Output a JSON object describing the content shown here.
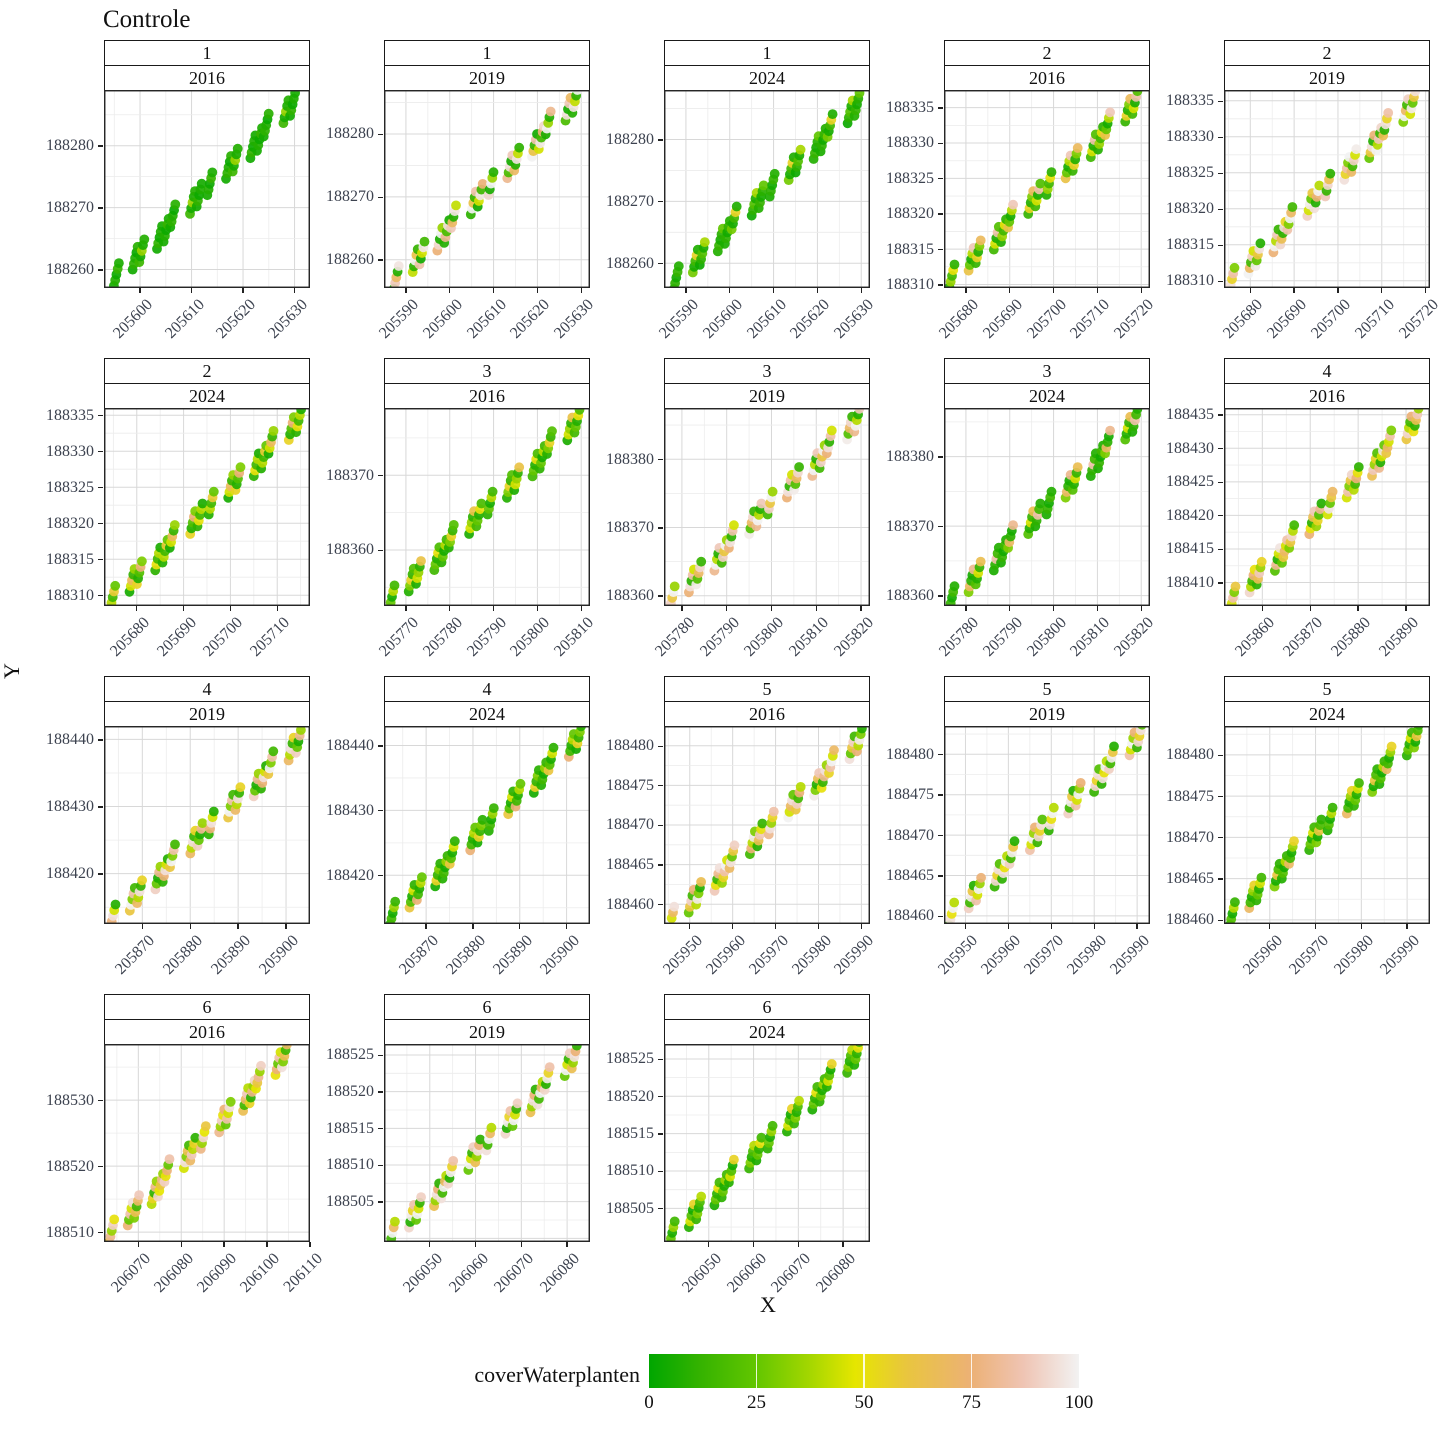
{
  "chart_data": {
    "type": "scatter",
    "title": "Controle",
    "xlabel": "X",
    "ylabel": "Y",
    "color_label": "coverWaterplanten",
    "color_scale": {
      "ticks": [
        0,
        25,
        50,
        75,
        100
      ],
      "stops": [
        {
          "at": 0,
          "color": "#00A600"
        },
        {
          "at": 12,
          "color": "#35B300"
        },
        {
          "at": 25,
          "color": "#63C600"
        },
        {
          "at": 37,
          "color": "#A2D600"
        },
        {
          "at": 48,
          "color": "#E6E600"
        },
        {
          "at": 60,
          "color": "#E9C53F"
        },
        {
          "at": 75,
          "color": "#ECB176"
        },
        {
          "at": 87,
          "color": "#EFC4B3"
        },
        {
          "at": 100,
          "color": "#F2F2F2"
        }
      ]
    },
    "style": {
      "panel_border": "#262626",
      "grid_major": "#d8d8d8",
      "grid_minor": "#ececec",
      "tick_color": "#222222",
      "point_radius": 4.9,
      "point_opacity": 0.92
    },
    "facets": [
      {
        "plot": "1",
        "year": "2016",
        "x_ticks": [
          205600,
          205610,
          205620,
          205630
        ],
        "y_ticks": [
          188260,
          188270,
          188280
        ],
        "x_range": [
          205593,
          205633
        ],
        "y_range": [
          188257,
          188289
        ],
        "band_x": [
          205596,
          205630
        ],
        "band_y": [
          188259.5,
          188287
        ],
        "covers": [
          5,
          8,
          3,
          12,
          6,
          4,
          10,
          7,
          2,
          9,
          14,
          5,
          35,
          6,
          8,
          4,
          11,
          3,
          7,
          5
        ]
      },
      {
        "plot": "1",
        "year": "2019",
        "x_ticks": [
          205590,
          205600,
          205610,
          205620,
          205630
        ],
        "y_ticks": [
          188260,
          188270,
          188280
        ],
        "x_range": [
          205585,
          205632
        ],
        "y_range": [
          188255.5,
          188287
        ],
        "band_x": [
          205588.5,
          205629
        ],
        "band_y": [
          188257.5,
          188285.5
        ],
        "covers": [
          5,
          88,
          70,
          8,
          96,
          42,
          10,
          100,
          62,
          12,
          85,
          4,
          45,
          97,
          15,
          75,
          92,
          6,
          100,
          35,
          8,
          80,
          18,
          95
        ]
      },
      {
        "plot": "1",
        "year": "2024",
        "x_ticks": [
          205590,
          205600,
          205610,
          205620,
          205630
        ],
        "y_ticks": [
          188260,
          188270,
          188280
        ],
        "x_range": [
          205585,
          205632
        ],
        "y_range": [
          188256,
          188288
        ],
        "band_x": [
          205588.5,
          205629.5
        ],
        "band_y": [
          188258,
          188286
        ],
        "covers": [
          6,
          10,
          4,
          12,
          8,
          28,
          5,
          15,
          55,
          7,
          3,
          10,
          20,
          6,
          38,
          8,
          12,
          5,
          9,
          24
        ]
      },
      {
        "plot": "2",
        "year": "2016",
        "x_ticks": [
          205680,
          205690,
          205700,
          205710,
          205720
        ],
        "y_ticks": [
          188310,
          188315,
          188320,
          188325,
          188330,
          188335
        ],
        "x_range": [
          205675,
          205722
        ],
        "y_range": [
          188309.5,
          188337.5
        ],
        "band_x": [
          205677.5,
          205719
        ],
        "band_y": [
          188311.5,
          188336
        ],
        "covers": [
          8,
          35,
          15,
          50,
          10,
          62,
          25,
          5,
          40,
          88,
          12,
          55,
          8,
          30,
          68,
          15,
          45,
          6,
          85,
          20
        ]
      },
      {
        "plot": "2",
        "year": "2019",
        "x_ticks": [
          205680,
          205690,
          205700,
          205710,
          205720
        ],
        "y_ticks": [
          188310,
          188315,
          188320,
          188325,
          188330,
          188335
        ],
        "x_range": [
          205674,
          205721
        ],
        "y_range": [
          188309,
          188336.5
        ],
        "band_x": [
          205676.5,
          205717.5
        ],
        "band_y": [
          188310.5,
          188335
        ],
        "covers": [
          10,
          95,
          55,
          85,
          30,
          100,
          70,
          15,
          90,
          45,
          98,
          25,
          60,
          95,
          8,
          75,
          100,
          40,
          88,
          12,
          92,
          65
        ]
      },
      {
        "plot": "2",
        "year": "2024",
        "x_ticks": [
          205680,
          205690,
          205700,
          205710
        ],
        "y_ticks": [
          188310,
          188315,
          188320,
          188325,
          188330,
          188335
        ],
        "x_range": [
          205673,
          205717
        ],
        "y_range": [
          188308.5,
          188336
        ],
        "band_x": [
          205675.5,
          205715
        ],
        "band_y": [
          188310,
          188334.5
        ],
        "covers": [
          8,
          40,
          15,
          58,
          25,
          5,
          45,
          68,
          12,
          35,
          55,
          8,
          20,
          75,
          30,
          10,
          50,
          15,
          40,
          6
        ]
      },
      {
        "plot": "3",
        "year": "2016",
        "x_ticks": [
          205770,
          205780,
          205790,
          205800,
          205810
        ],
        "y_ticks": [
          188360,
          188370
        ],
        "x_range": [
          205765,
          205812
        ],
        "y_range": [
          188352.5,
          188379
        ],
        "band_x": [
          205767.5,
          205809.5
        ],
        "band_y": [
          188354,
          188377.5
        ],
        "covers": [
          10,
          25,
          5,
          40,
          15,
          8,
          30,
          55,
          12,
          20,
          6,
          45,
          35,
          10,
          62,
          15,
          25,
          8,
          50,
          18
        ]
      },
      {
        "plot": "3",
        "year": "2019",
        "x_ticks": [
          205780,
          205790,
          205800,
          205810,
          205820
        ],
        "y_ticks": [
          188360,
          188370,
          188380
        ],
        "x_range": [
          205776,
          205822
        ],
        "y_range": [
          188358.5,
          188387.5
        ],
        "band_x": [
          205778.5,
          205819.5
        ],
        "band_y": [
          188360,
          188386
        ],
        "covers": [
          15,
          90,
          60,
          100,
          35,
          75,
          95,
          10,
          85,
          45,
          98,
          20,
          70,
          92,
          12,
          80,
          100,
          40,
          8,
          88
        ]
      },
      {
        "plot": "3",
        "year": "2024",
        "x_ticks": [
          205780,
          205790,
          205800,
          205810,
          205820
        ],
        "y_ticks": [
          188360,
          188370,
          188380
        ],
        "x_range": [
          205775,
          205822
        ],
        "y_range": [
          188358.5,
          188387
        ],
        "band_x": [
          205777.5,
          205819
        ],
        "band_y": [
          188360,
          188385.5
        ],
        "covers": [
          6,
          12,
          4,
          15,
          8,
          30,
          70,
          10,
          5,
          80,
          20,
          8,
          45,
          12,
          65,
          6,
          10,
          85,
          15,
          8
        ]
      },
      {
        "plot": "4",
        "year": "2016",
        "x_ticks": [
          205860,
          205870,
          205880,
          205890
        ],
        "y_ticks": [
          188410,
          188415,
          188420,
          188425,
          188430,
          188435
        ],
        "x_range": [
          205852,
          205895
        ],
        "y_range": [
          188406.5,
          188436
        ],
        "band_x": [
          205854.5,
          205892.5
        ],
        "band_y": [
          188408,
          188434.5
        ],
        "covers": [
          70,
          45,
          85,
          30,
          60,
          92,
          40,
          15,
          75,
          50,
          10,
          65,
          88,
          35,
          55,
          20,
          80,
          8,
          45,
          96,
          25,
          60
        ]
      },
      {
        "plot": "4",
        "year": "2019",
        "x_ticks": [
          205870,
          205880,
          205890,
          205900
        ],
        "y_ticks": [
          188420,
          188430,
          188440
        ],
        "x_range": [
          205862,
          205905
        ],
        "y_range": [
          188412.5,
          188442
        ],
        "band_x": [
          205864.5,
          205903
        ],
        "band_y": [
          188414,
          188440
        ],
        "covers": [
          10,
          75,
          95,
          45,
          8,
          60,
          100,
          30,
          85,
          15,
          70,
          40,
          95,
          12,
          55,
          90,
          25,
          6,
          80,
          35
        ]
      },
      {
        "plot": "4",
        "year": "2024",
        "x_ticks": [
          205870,
          205880,
          205890,
          205900
        ],
        "y_ticks": [
          188420,
          188430,
          188440
        ],
        "x_range": [
          205861,
          205905
        ],
        "y_range": [
          188412.5,
          188443
        ],
        "band_x": [
          205863.5,
          205903
        ],
        "band_y": [
          188414.5,
          188441.5
        ],
        "covers": [
          8,
          15,
          5,
          35,
          12,
          60,
          20,
          6,
          45,
          10,
          75,
          15,
          8,
          40,
          25,
          5,
          55,
          12,
          30,
          9
        ]
      },
      {
        "plot": "5",
        "year": "2016",
        "x_ticks": [
          205950,
          205960,
          205970,
          205980,
          205990
        ],
        "y_ticks": [
          188460,
          188465,
          188470,
          188475,
          188480
        ],
        "x_range": [
          205944,
          205992
        ],
        "y_range": [
          188457.5,
          188482.5
        ],
        "band_x": [
          205946.5,
          205990
        ],
        "band_y": [
          188458.5,
          188481
        ],
        "covers": [
          85,
          100,
          45,
          70,
          95,
          25,
          60,
          90,
          15,
          75,
          40,
          98,
          30,
          8,
          65,
          88,
          50,
          12,
          80,
          95,
          35,
          55
        ]
      },
      {
        "plot": "5",
        "year": "2019",
        "x_ticks": [
          205950,
          205960,
          205970,
          205980,
          205990
        ],
        "y_ticks": [
          188460,
          188465,
          188470,
          188475,
          188480
        ],
        "x_range": [
          205945,
          205993
        ],
        "y_range": [
          188459,
          188483.5
        ],
        "band_x": [
          205947.5,
          205991
        ],
        "band_y": [
          188460.5,
          188482.5
        ],
        "covers": [
          10,
          95,
          50,
          100,
          40,
          90,
          15,
          98,
          60,
          8,
          85,
          45,
          100,
          35,
          75,
          12,
          92,
          55,
          95,
          20
        ]
      },
      {
        "plot": "5",
        "year": "2024",
        "x_ticks": [
          205960,
          205970,
          205980,
          205990
        ],
        "y_ticks": [
          188460,
          188465,
          188470,
          188475,
          188480
        ],
        "x_range": [
          205950,
          205995
        ],
        "y_range": [
          188459.5,
          188483.5
        ],
        "band_x": [
          205952.5,
          205992.5
        ],
        "band_y": [
          188461,
          188482.5
        ],
        "covers": [
          8,
          20,
          5,
          40,
          12,
          70,
          15,
          6,
          35,
          55,
          10,
          25,
          8,
          45,
          15,
          30,
          5,
          60,
          18,
          10
        ]
      },
      {
        "plot": "6",
        "year": "2016",
        "x_ticks": [
          206070,
          206080,
          206090,
          206100,
          206110
        ],
        "y_ticks": [
          188510,
          188520,
          188530
        ],
        "x_range": [
          206062,
          206110
        ],
        "y_range": [
          188508.5,
          188538.5
        ],
        "band_x": [
          206064.5,
          206104.5
        ],
        "band_y": [
          188510.5,
          188537
        ],
        "covers": [
          60,
          80,
          35,
          90,
          50,
          75,
          25,
          85,
          45,
          95,
          30,
          65,
          15,
          70,
          88,
          40,
          55,
          10,
          78,
          35,
          92,
          48
        ]
      },
      {
        "plot": "6",
        "year": "2019",
        "x_ticks": [
          206050,
          206060,
          206070,
          206080
        ],
        "y_ticks": [
          188505,
          188510,
          188515,
          188520,
          188525
        ],
        "x_range": [
          206040,
          206085
        ],
        "y_range": [
          188499.5,
          188526.5
        ],
        "band_x": [
          206042.5,
          206082
        ],
        "band_y": [
          188501,
          188525
        ],
        "covers": [
          95,
          15,
          100,
          70,
          40,
          92,
          8,
          98,
          55,
          85,
          25,
          100,
          45,
          12,
          90,
          65,
          35,
          95,
          75,
          10
        ]
      },
      {
        "plot": "6",
        "year": "2024",
        "x_ticks": [
          206050,
          206060,
          206070,
          206080
        ],
        "y_ticks": [
          188505,
          188510,
          188515,
          188520,
          188525
        ],
        "x_range": [
          206040,
          206086
        ],
        "y_range": [
          188500.5,
          188527
        ],
        "band_x": [
          206042.5,
          206083.5
        ],
        "band_y": [
          188502,
          188526
        ],
        "covers": [
          10,
          25,
          6,
          35,
          15,
          8,
          45,
          20,
          5,
          55,
          12,
          30,
          8,
          18,
          40,
          6,
          25,
          10,
          50,
          15
        ]
      }
    ]
  }
}
